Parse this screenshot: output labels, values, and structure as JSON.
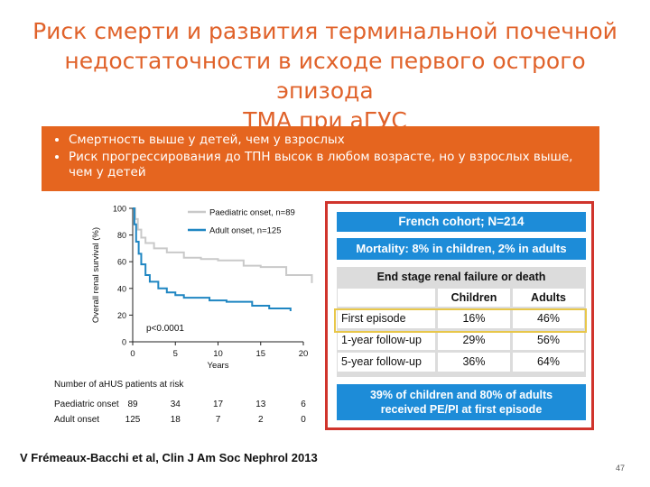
{
  "slide": {
    "title_line1": "Риск  смерти и развития терминальной почечной",
    "title_line2": "недостаточности в исходе первого острого эпизода",
    "title_line3": "ТМА при аГУС",
    "bullets": [
      "Смертность выше у детей, чем у взрослых",
      "Риск прогрессирования до ТПН высок в любом возрасте, но у взрослых выше, чем у детей"
    ],
    "citation": "V Frémeaux-Bacchi et al, Clin J Am Soc Nephrol 2013",
    "page_number": "47"
  },
  "chart_data": {
    "type": "line",
    "ylabel": "Overall renal survival (%)",
    "xlabel": "Years",
    "xlim": [
      0,
      20
    ],
    "ylim": [
      0,
      100
    ],
    "x_ticks": [
      0,
      5,
      10,
      15,
      20
    ],
    "y_ticks": [
      0,
      20,
      40,
      60,
      80,
      100
    ],
    "legend_position": "top-right",
    "annotation": "p<0.0001",
    "series": [
      {
        "name": "Paediatric onset, n=89",
        "color": "#c9c9c9",
        "step": [
          [
            0,
            100
          ],
          [
            0.3,
            92
          ],
          [
            0.6,
            84
          ],
          [
            1,
            78
          ],
          [
            1.5,
            74
          ],
          [
            2.5,
            70
          ],
          [
            4,
            67
          ],
          [
            6,
            63
          ],
          [
            8,
            62
          ],
          [
            10,
            61
          ],
          [
            13,
            57
          ],
          [
            15,
            56
          ],
          [
            18,
            50
          ],
          [
            21,
            44
          ]
        ]
      },
      {
        "name": "Adult onset, n=125",
        "color": "#1f86c2",
        "step": [
          [
            0,
            100
          ],
          [
            0.2,
            88
          ],
          [
            0.4,
            75
          ],
          [
            0.7,
            66
          ],
          [
            1,
            58
          ],
          [
            1.5,
            50
          ],
          [
            2,
            45
          ],
          [
            3,
            40
          ],
          [
            4,
            37
          ],
          [
            5,
            35
          ],
          [
            6,
            33
          ],
          [
            9,
            31
          ],
          [
            11,
            30
          ],
          [
            14,
            27
          ],
          [
            16,
            25
          ],
          [
            18.5,
            23
          ]
        ]
      }
    ],
    "risk_table": {
      "title": "Number of aHUS patients at risk",
      "rows": [
        {
          "label": "Paediatric onset",
          "values": [
            "89",
            "34",
            "17",
            "13",
            "6"
          ]
        },
        {
          "label": "Adult onset",
          "values": [
            "125",
            "18",
            "7",
            "2",
            "0"
          ]
        }
      ]
    }
  },
  "table_panel": {
    "header": "French cohort; N=214",
    "mortality": "Mortality: 8% in children, 2% in adults",
    "subtable_title": "End stage renal failure or death",
    "columns": [
      "Children",
      "Adults"
    ],
    "rows": [
      {
        "label": "First episode",
        "children": "16%",
        "adults": "46%"
      },
      {
        "label": "1-year follow-up",
        "children": "29%",
        "adults": "56%"
      },
      {
        "label": "5-year follow-up",
        "children": "36%",
        "adults": "64%"
      }
    ],
    "footer_line1": "39% of children and 80% of adults",
    "footer_line2": "received PE/PI at first episode",
    "highlight_color": "#e8c74a",
    "accent_color": "#1d8cd8",
    "frame_color": "#d0342c"
  },
  "colors": {
    "title": "#e0622a",
    "bullet_box": "#e5651f"
  }
}
